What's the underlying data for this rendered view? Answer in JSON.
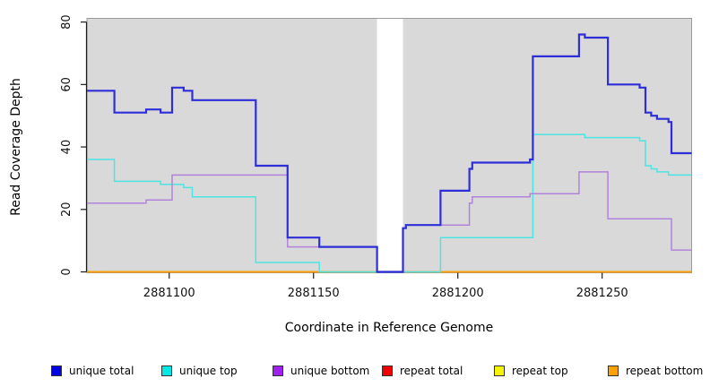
{
  "chart_data": {
    "type": "line",
    "title": "",
    "xlabel": "Coordinate in Reference Genome",
    "ylabel": "Read Coverage Depth",
    "xlim": [
      2881071.5,
      2881281
    ],
    "ylim": [
      0,
      80
    ],
    "x_ticks": [
      2881100,
      2881150,
      2881200,
      2881250
    ],
    "y_ticks": [
      0,
      20,
      40,
      60,
      80
    ],
    "grid": false,
    "legend_position": "bottom",
    "panel_background": "#d9d9d9",
    "gap_region": {
      "start": 2881172,
      "end": 2881181,
      "color": "#ffffff"
    },
    "series": [
      {
        "name": "unique total",
        "color": "#2e2ed8",
        "legend_color": "#0000e0",
        "width": 2.2,
        "steps": [
          [
            2881071.5,
            58
          ],
          [
            2881081,
            51
          ],
          [
            2881092,
            52
          ],
          [
            2881097,
            51
          ],
          [
            2881101,
            59
          ],
          [
            2881105,
            58
          ],
          [
            2881108,
            55
          ],
          [
            2881130,
            34
          ],
          [
            2881141,
            11
          ],
          [
            2881152,
            8
          ],
          [
            2881172,
            0
          ],
          [
            2881181,
            14
          ],
          [
            2881182,
            15
          ],
          [
            2881194,
            26
          ],
          [
            2881204,
            33
          ],
          [
            2881205,
            35
          ],
          [
            2881225,
            36
          ],
          [
            2881226,
            69
          ],
          [
            2881242,
            76
          ],
          [
            2881244,
            75
          ],
          [
            2881252,
            60
          ],
          [
            2881263,
            59
          ],
          [
            2881265,
            51
          ],
          [
            2881267,
            50
          ],
          [
            2881269,
            49
          ],
          [
            2881273,
            48
          ],
          [
            2881274,
            38
          ],
          [
            2881281,
            38
          ]
        ]
      },
      {
        "name": "unique top",
        "color": "#4de4e4",
        "legend_color": "#00e8e8",
        "width": 1.5,
        "steps": [
          [
            2881071.5,
            36
          ],
          [
            2881081,
            29
          ],
          [
            2881097,
            28
          ],
          [
            2881105,
            27
          ],
          [
            2881108,
            24
          ],
          [
            2881130,
            3
          ],
          [
            2881152,
            0
          ],
          [
            2881194,
            11
          ],
          [
            2881226,
            44
          ],
          [
            2881244,
            43
          ],
          [
            2881263,
            42
          ],
          [
            2881265,
            34
          ],
          [
            2881267,
            33
          ],
          [
            2881269,
            32
          ],
          [
            2881273,
            31
          ],
          [
            2881281,
            31
          ]
        ]
      },
      {
        "name": "unique bottom",
        "color": "#b183dc",
        "legend_color": "#a020f0",
        "width": 1.5,
        "steps": [
          [
            2881071.5,
            22
          ],
          [
            2881092,
            23
          ],
          [
            2881101,
            31
          ],
          [
            2881141,
            8
          ],
          [
            2881172,
            0
          ],
          [
            2881181,
            14
          ],
          [
            2881182,
            15
          ],
          [
            2881204,
            22
          ],
          [
            2881205,
            24
          ],
          [
            2881225,
            25
          ],
          [
            2881242,
            32
          ],
          [
            2881252,
            17
          ],
          [
            2881274,
            7
          ],
          [
            2881281,
            7
          ]
        ]
      },
      {
        "name": "repeat total",
        "color": "#e00000",
        "legend_color": "#f00000",
        "width": 1.5,
        "steps": [
          [
            2881071.5,
            0
          ],
          [
            2881281,
            0
          ]
        ]
      },
      {
        "name": "repeat top",
        "color": "#f0f000",
        "legend_color": "#f5f500",
        "width": 1.5,
        "steps": [
          [
            2881071.5,
            0
          ],
          [
            2881281,
            0
          ]
        ]
      },
      {
        "name": "repeat bottom",
        "color": "#ff9d00",
        "legend_color": "#ffa200",
        "width": 1.8,
        "steps": [
          [
            2881071.5,
            0
          ],
          [
            2881281,
            0
          ]
        ]
      }
    ]
  },
  "legend": {
    "items": [
      {
        "label": "unique total",
        "color": "#0000e0"
      },
      {
        "label": "unique top",
        "color": "#00e8e8"
      },
      {
        "label": "unique bottom",
        "color": "#a020f0"
      },
      {
        "label": "repeat total",
        "color": "#f00000"
      },
      {
        "label": "repeat top",
        "color": "#f5f500"
      },
      {
        "label": "repeat bottom",
        "color": "#ffa200"
      }
    ]
  }
}
